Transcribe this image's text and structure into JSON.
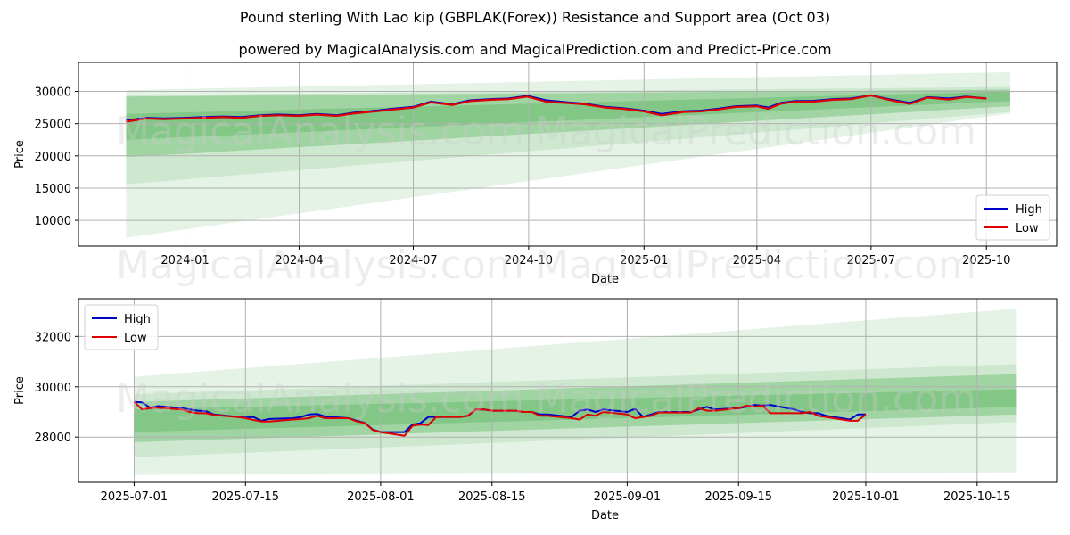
{
  "header": {
    "title": "Pound sterling With Lao kip (GBPLAK(Forex)) Resistance and Support area (Oct 03)",
    "subtitle": "powered by MagicalAnalysis.com and MagicalPrediction.com and Predict-Price.com"
  },
  "watermarks": [
    "MagicalAnalysis.com",
    "MagicalPrediction.com"
  ],
  "colors": {
    "high": "#0000cc",
    "low": "#dd0000",
    "band": "#4caf50",
    "grid": "#b0b0b0"
  },
  "chart_data": [
    {
      "type": "line",
      "title": "",
      "xlabel": "Date",
      "ylabel": "Price",
      "xlim": [
        "2023-10-08",
        "2025-11-26"
      ],
      "ylim": [
        6000,
        34500
      ],
      "grid": true,
      "legend": {
        "placement": "bottom-right",
        "entries": [
          "High",
          "Low"
        ]
      },
      "yticks": [
        10000,
        15000,
        20000,
        25000,
        30000
      ],
      "ytick_labels": [
        "10000",
        "15000",
        "20000",
        "25000",
        "30000"
      ],
      "xticks": [
        "2024-01-01",
        "2024-04-01",
        "2024-07-01",
        "2024-10-01",
        "2025-01-01",
        "2025-04-01",
        "2025-07-01",
        "2025-10-01"
      ],
      "xtick_labels": [
        "2024-01",
        "2024-04",
        "2024-07",
        "2024-10",
        "2025-01",
        "2025-04",
        "2025-07",
        "2025-10"
      ],
      "x": [
        "2023-11-15",
        "2023-12-01",
        "2023-12-15",
        "2024-01-01",
        "2024-01-15",
        "2024-02-01",
        "2024-02-15",
        "2024-03-01",
        "2024-03-15",
        "2024-04-01",
        "2024-04-15",
        "2024-05-01",
        "2024-05-15",
        "2024-06-01",
        "2024-06-15",
        "2024-07-01",
        "2024-07-15",
        "2024-08-01",
        "2024-08-15",
        "2024-09-01",
        "2024-09-15",
        "2024-09-30",
        "2024-10-15",
        "2024-11-01",
        "2024-11-15",
        "2024-12-01",
        "2024-12-15",
        "2025-01-01",
        "2025-01-15",
        "2025-02-01",
        "2025-02-15",
        "2025-03-01",
        "2025-03-15",
        "2025-04-01",
        "2025-04-10",
        "2025-04-20",
        "2025-05-01",
        "2025-05-15",
        "2025-06-01",
        "2025-06-15",
        "2025-07-01",
        "2025-07-15",
        "2025-08-01",
        "2025-08-15",
        "2025-09-01",
        "2025-09-15",
        "2025-10-01"
      ],
      "series": [
        {
          "name": "High",
          "values": [
            25500,
            25900,
            25800,
            25900,
            26000,
            26100,
            26000,
            26300,
            26400,
            26300,
            26500,
            26300,
            26700,
            27000,
            27300,
            27600,
            28400,
            28000,
            28600,
            28800,
            28900,
            29300,
            28600,
            28300,
            28100,
            27600,
            27400,
            27000,
            26500,
            26900,
            27000,
            27300,
            27700,
            27800,
            27500,
            28200,
            28500,
            28500,
            28800,
            28900,
            29400,
            28800,
            28200,
            29100,
            28900,
            29200,
            28900
          ]
        },
        {
          "name": "Low",
          "values": [
            25300,
            25800,
            25700,
            25800,
            25900,
            26000,
            25900,
            26200,
            26300,
            26200,
            26400,
            26200,
            26600,
            26900,
            27200,
            27500,
            28300,
            27900,
            28500,
            28700,
            28800,
            29200,
            28400,
            28200,
            28000,
            27500,
            27300,
            26900,
            26300,
            26800,
            26900,
            27200,
            27600,
            27700,
            27300,
            28100,
            28400,
            28400,
            28700,
            28800,
            29400,
            28700,
            28050,
            29050,
            28750,
            29150,
            28900
          ]
        }
      ],
      "bands": [
        {
          "name": "outer-lower",
          "x": [
            "2023-11-15",
            "2025-10-20"
          ],
          "upper": [
            30200,
            33000
          ],
          "lower": [
            7300,
            26600
          ]
        },
        {
          "name": "mid",
          "x": [
            "2023-11-15",
            "2025-10-20"
          ],
          "upper": [
            29400,
            30700
          ],
          "lower": [
            15600,
            26800
          ]
        },
        {
          "name": "core",
          "x": [
            "2023-11-15",
            "2025-10-20"
          ],
          "upper": [
            29200,
            30300
          ],
          "lower": [
            19800,
            27700
          ]
        },
        {
          "name": "inner",
          "x": [
            "2023-11-15",
            "2025-10-20"
          ],
          "upper": [
            26500,
            30000
          ],
          "lower": [
            22500,
            28500
          ]
        }
      ]
    },
    {
      "type": "line",
      "title": "",
      "xlabel": "Date",
      "ylabel": "Price",
      "xlim": [
        "2025-06-24",
        "2025-10-25"
      ],
      "ylim": [
        26200,
        33500
      ],
      "grid": true,
      "legend": {
        "placement": "top-left",
        "entries": [
          "High",
          "Low"
        ]
      },
      "yticks": [
        28000,
        30000,
        32000
      ],
      "ytick_labels": [
        "28000",
        "30000",
        "32000"
      ],
      "xticks": [
        "2025-07-01",
        "2025-07-15",
        "2025-08-01",
        "2025-08-15",
        "2025-09-01",
        "2025-09-15",
        "2025-10-01",
        "2025-10-15"
      ],
      "xtick_labels": [
        "2025-07-01",
        "2025-07-15",
        "2025-08-01",
        "2025-08-15",
        "2025-09-01",
        "2025-09-15",
        "2025-10-01",
        "2025-10-15"
      ],
      "x": [
        "2025-07-01",
        "2025-07-02",
        "2025-07-03",
        "2025-07-04",
        "2025-07-07",
        "2025-07-08",
        "2025-07-09",
        "2025-07-10",
        "2025-07-11",
        "2025-07-14",
        "2025-07-15",
        "2025-07-16",
        "2025-07-17",
        "2025-07-18",
        "2025-07-21",
        "2025-07-22",
        "2025-07-23",
        "2025-07-24",
        "2025-07-25",
        "2025-07-28",
        "2025-07-29",
        "2025-07-30",
        "2025-07-31",
        "2025-08-01",
        "2025-08-04",
        "2025-08-05",
        "2025-08-06",
        "2025-08-07",
        "2025-08-08",
        "2025-08-11",
        "2025-08-12",
        "2025-08-13",
        "2025-08-14",
        "2025-08-15",
        "2025-08-18",
        "2025-08-19",
        "2025-08-20",
        "2025-08-21",
        "2025-08-22",
        "2025-08-25",
        "2025-08-26",
        "2025-08-27",
        "2025-08-28",
        "2025-08-29",
        "2025-09-01",
        "2025-09-02",
        "2025-09-03",
        "2025-09-04",
        "2025-09-05",
        "2025-09-08",
        "2025-09-09",
        "2025-09-10",
        "2025-09-11",
        "2025-09-12",
        "2025-09-15",
        "2025-09-16",
        "2025-09-17",
        "2025-09-18",
        "2025-09-19",
        "2025-09-22",
        "2025-09-23",
        "2025-09-24",
        "2025-09-25",
        "2025-09-26",
        "2025-09-29",
        "2025-09-30",
        "2025-10-01"
      ],
      "series": [
        {
          "name": "High",
          "values": [
            29400,
            29380,
            29170,
            29230,
            29150,
            29100,
            29050,
            29030,
            28900,
            28800,
            28780,
            28800,
            28650,
            28720,
            28750,
            28800,
            28900,
            28920,
            28820,
            28750,
            28650,
            28560,
            28300,
            28200,
            28200,
            28500,
            28550,
            28800,
            28800,
            28800,
            28850,
            29100,
            29100,
            29050,
            29050,
            29000,
            29000,
            28900,
            28900,
            28800,
            29050,
            29100,
            29000,
            29100,
            29000,
            29120,
            28800,
            28900,
            29000,
            29000,
            29000,
            29100,
            29200,
            29100,
            29150,
            29200,
            29280,
            29250,
            29280,
            29100,
            29000,
            28950,
            28950,
            28850,
            28700,
            28900,
            28900
          ]
        },
        {
          "name": "Low",
          "values": [
            29400,
            29100,
            29150,
            29170,
            29100,
            29000,
            28950,
            28950,
            28880,
            28800,
            28750,
            28680,
            28620,
            28620,
            28700,
            28720,
            28750,
            28850,
            28750,
            28750,
            28620,
            28560,
            28280,
            28200,
            28050,
            28450,
            28500,
            28480,
            28800,
            28800,
            28850,
            29100,
            29100,
            29050,
            29050,
            29000,
            29000,
            28850,
            28850,
            28750,
            28700,
            28900,
            28850,
            29000,
            28900,
            28750,
            28800,
            28850,
            28980,
            28980,
            28980,
            29150,
            29050,
            29050,
            29150,
            29250,
            29200,
            29250,
            28950,
            28950,
            28950,
            29000,
            28850,
            28800,
            28650,
            28650,
            28900
          ]
        }
      ],
      "bands": [
        {
          "name": "outer",
          "x": [
            "2025-07-01",
            "2025-10-20"
          ],
          "upper": [
            30400,
            33100
          ],
          "lower": [
            26500,
            26600
          ]
        },
        {
          "name": "mid",
          "x": [
            "2025-07-01",
            "2025-10-20"
          ],
          "upper": [
            29700,
            30900
          ],
          "lower": [
            27200,
            28600
          ]
        },
        {
          "name": "core",
          "x": [
            "2025-07-01",
            "2025-10-20"
          ],
          "upper": [
            29400,
            30500
          ],
          "lower": [
            27800,
            28900
          ]
        },
        {
          "name": "inner",
          "x": [
            "2025-07-01",
            "2025-10-20"
          ],
          "upper": [
            29100,
            29900
          ],
          "lower": [
            28200,
            29200
          ]
        }
      ]
    }
  ]
}
